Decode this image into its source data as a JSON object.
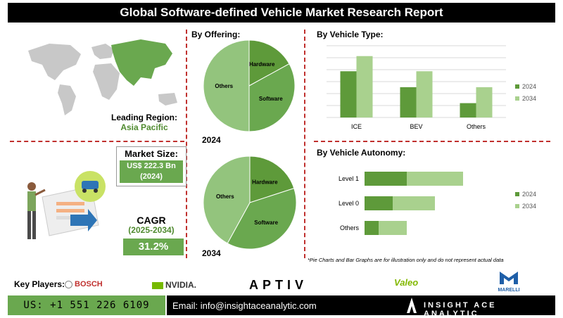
{
  "title": "Global Software-defined Vehicle Market Research Report",
  "region": {
    "label": "Leading Region:",
    "value": "Asia Pacific"
  },
  "market_size": {
    "label": "Market Size:",
    "value_line1": "US$ 222.3 Bn",
    "value_line2": "(2024)"
  },
  "cagr": {
    "label": "CAGR",
    "period": "(2025-2034)",
    "value": "31.2%"
  },
  "note": "*Pie Charts and Bar Graphs are for illustration only and do not represent actual data",
  "key_players": {
    "label": "Key Players:",
    "logos": [
      "BOSCH",
      "NVIDIA.",
      "APTIV",
      "Valeo",
      "MARELLI"
    ]
  },
  "footer": {
    "phone": "US: +1 551 226 6109",
    "email": "Email: info@insightaceanalytic.com",
    "brand": "INSIGHT ACE ANALYTIC"
  },
  "colors": {
    "dark_green": "#5e9a3a",
    "light_green": "#a9d18e",
    "pie_green": "#6aa84f",
    "pie_light": "#93c47d",
    "accent_red": "#c0302e"
  },
  "chart_data": [
    {
      "type": "pie",
      "title": "By Offering:",
      "year_label": "2024",
      "slices": [
        {
          "label": "Hardware",
          "value": 17
        },
        {
          "label": "Software",
          "value": 33
        },
        {
          "label": "Others",
          "value": 50
        }
      ]
    },
    {
      "type": "pie",
      "title": "",
      "year_label": "2034",
      "slices": [
        {
          "label": "Hardware",
          "value": 20
        },
        {
          "label": "Software",
          "value": 38
        },
        {
          "label": "Others",
          "value": 42
        }
      ]
    },
    {
      "type": "bar",
      "title": "By Vehicle Type:",
      "categories": [
        "ICE",
        "BEV",
        "Others"
      ],
      "series": [
        {
          "name": "2024",
          "values": [
            58,
            38,
            18
          ]
        },
        {
          "name": "2034",
          "values": [
            77,
            58,
            38
          ]
        }
      ],
      "ylim": [
        0,
        90
      ],
      "grid": true,
      "legend": "right"
    },
    {
      "type": "bar",
      "orientation": "horizontal",
      "title": "By Vehicle Autonomy:",
      "categories": [
        "Level 1",
        "Level 0",
        "Others"
      ],
      "series": [
        {
          "name": "2024",
          "values": [
            30,
            20,
            10
          ]
        },
        {
          "name": "2034",
          "values": [
            40,
            30,
            20
          ]
        }
      ],
      "stacked": true,
      "legend": "right"
    }
  ]
}
